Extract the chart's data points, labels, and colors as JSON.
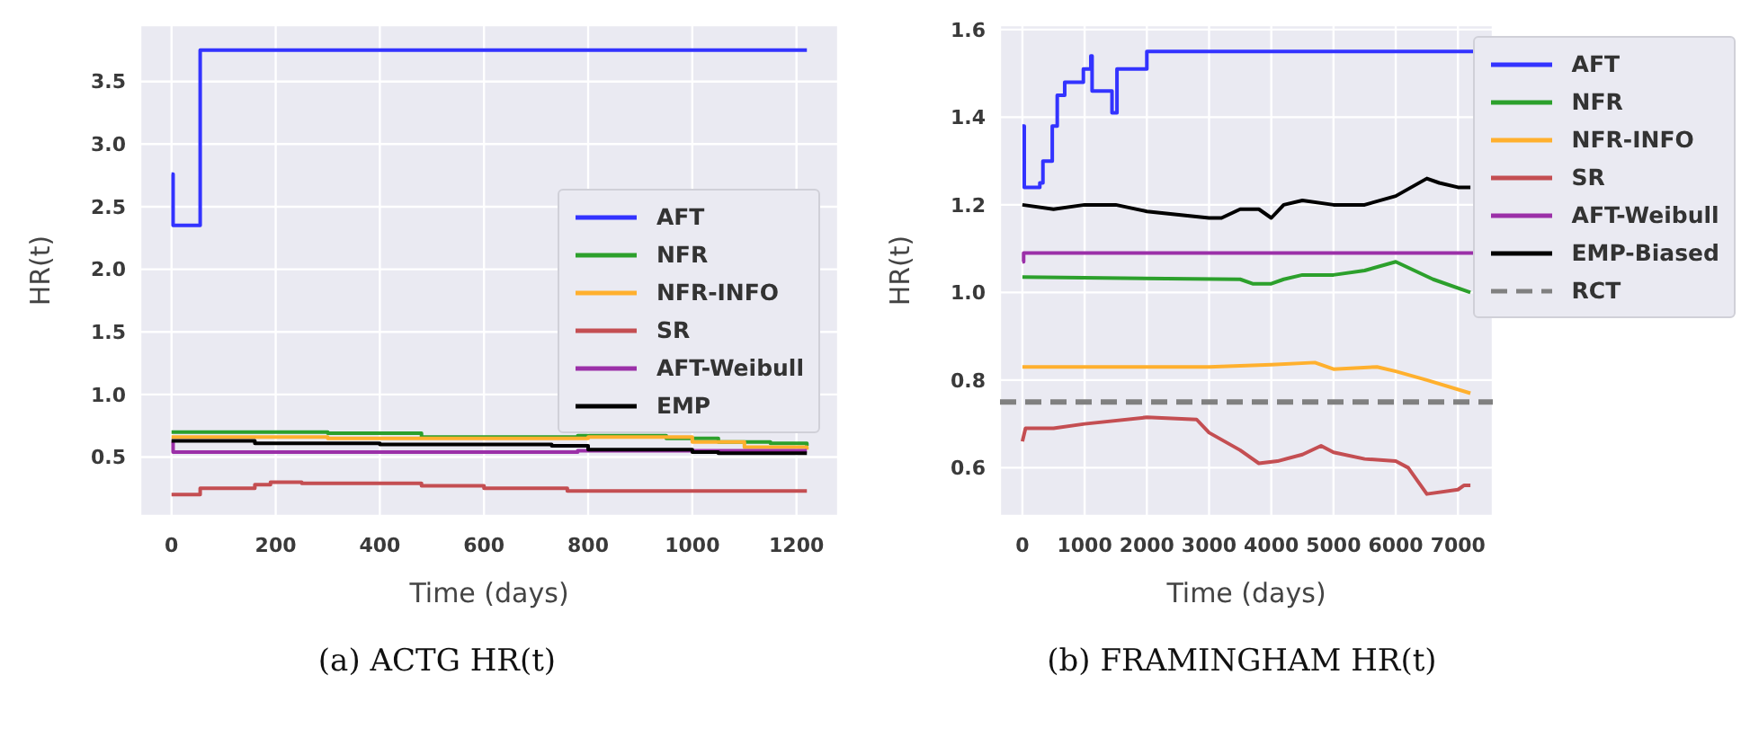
{
  "chart_data": [
    {
      "type": "step",
      "title": "(a) ACTG HR(t)",
      "xlabel": "Time (days)",
      "ylabel": "HR(t)",
      "xlim": [
        -60,
        1280
      ],
      "ylim": [
        0.03,
        3.95
      ],
      "xticks": [
        0,
        200,
        400,
        600,
        800,
        1000,
        1200
      ],
      "yticks": [
        {
          "value": 0.5,
          "label": "0.5"
        },
        {
          "value": 1,
          "label": "1.0"
        },
        {
          "value": 1.5,
          "label": "1.5"
        },
        {
          "value": 2,
          "label": "2.0"
        },
        {
          "value": 2.5,
          "label": "2.5"
        },
        {
          "value": 3,
          "label": "3.0"
        },
        {
          "value": 3.5,
          "label": "3.5"
        }
      ],
      "grid": true,
      "legend": "right",
      "series": [
        {
          "name": "AFT",
          "color": "#3333ff",
          "x": [
            0,
            3,
            55,
            1220
          ],
          "values": [
            2.76,
            2.35,
            3.75,
            3.75
          ]
        },
        {
          "name": "NFR",
          "color": "#2ca02c",
          "x": [
            0,
            300,
            480,
            780,
            950,
            1050,
            1150,
            1220
          ],
          "values": [
            0.7,
            0.69,
            0.66,
            0.67,
            0.65,
            0.62,
            0.61,
            0.59
          ]
        },
        {
          "name": "NFR-INFO",
          "color": "#ffb02e",
          "x": [
            0,
            300,
            750,
            800,
            1000,
            1100,
            1220
          ],
          "values": [
            0.66,
            0.65,
            0.65,
            0.66,
            0.62,
            0.58,
            0.56
          ]
        },
        {
          "name": "SR",
          "color": "#c44e52",
          "x": [
            0,
            55,
            160,
            190,
            250,
            480,
            600,
            760,
            1220
          ],
          "values": [
            0.2,
            0.25,
            0.28,
            0.3,
            0.29,
            0.27,
            0.25,
            0.23,
            0.23
          ]
        },
        {
          "name": "AFT-Weibull",
          "color": "#9b30a8",
          "x": [
            0,
            3,
            780,
            1220
          ],
          "values": [
            0.62,
            0.54,
            0.55,
            0.55
          ]
        },
        {
          "name": "EMP",
          "color": "#000000",
          "x": [
            0,
            160,
            400,
            730,
            800,
            1000,
            1050,
            1220
          ],
          "values": [
            0.63,
            0.61,
            0.6,
            0.59,
            0.56,
            0.54,
            0.53,
            0.53
          ]
        }
      ]
    },
    {
      "type": "line",
      "title": "(b) FRAMINGHAM HR(t)",
      "xlabel": "Time (days)",
      "ylabel": "HR(t)",
      "xlim": [
        -360,
        7560
      ],
      "ylim": [
        0.49,
        1.61
      ],
      "xticks": [
        0,
        1000,
        2000,
        3000,
        4000,
        5000,
        6000,
        7000
      ],
      "yticks": [
        {
          "value": 0.6,
          "label": "0.6"
        },
        {
          "value": 0.8,
          "label": "0.8"
        },
        {
          "value": 1,
          "label": "1.0"
        },
        {
          "value": 1.2,
          "label": "1.2"
        },
        {
          "value": 1.4,
          "label": "1.4"
        },
        {
          "value": 1.6,
          "label": "1.6"
        }
      ],
      "grid": true,
      "legend": "right",
      "ref_lines": [
        {
          "axis": "y",
          "value": 0.75,
          "label": "RCT",
          "color": "#808080",
          "line_style": "dashed"
        }
      ],
      "series": [
        {
          "name": "AFT",
          "color": "#3333ff",
          "type": "step",
          "x": [
            0,
            30,
            280,
            330,
            480,
            560,
            680,
            980,
            1100,
            1120,
            1440,
            1520,
            2000,
            7280
          ],
          "values": [
            1.38,
            1.24,
            1.25,
            1.3,
            1.38,
            1.45,
            1.48,
            1.51,
            1.54,
            1.46,
            1.41,
            1.51,
            1.55,
            1.55
          ]
        },
        {
          "name": "NFR",
          "color": "#2ca02c",
          "x": [
            0,
            3500,
            3700,
            4000,
            4200,
            4500,
            5000,
            5500,
            6000,
            6600,
            7200
          ],
          "values": [
            1.035,
            1.03,
            1.02,
            1.02,
            1.03,
            1.04,
            1.04,
            1.05,
            1.07,
            1.03,
            1.0
          ]
        },
        {
          "name": "NFR-INFO",
          "color": "#ffb02e",
          "x": [
            0,
            3000,
            4000,
            4700,
            5000,
            5700,
            6000,
            6500,
            7200
          ],
          "values": [
            0.83,
            0.83,
            0.835,
            0.84,
            0.825,
            0.83,
            0.82,
            0.8,
            0.77
          ]
        },
        {
          "name": "SR",
          "color": "#c44e52",
          "x": [
            0,
            50,
            500,
            1000,
            2000,
            2800,
            3000,
            3500,
            3800,
            4100,
            4500,
            4800,
            5000,
            5500,
            6000,
            6200,
            6400,
            6500,
            7000,
            7100,
            7200
          ],
          "values": [
            0.66,
            0.69,
            0.69,
            0.7,
            0.715,
            0.71,
            0.68,
            0.64,
            0.61,
            0.615,
            0.63,
            0.65,
            0.635,
            0.62,
            0.615,
            0.6,
            0.56,
            0.54,
            0.55,
            0.56,
            0.56
          ]
        },
        {
          "name": "AFT-Weibull",
          "color": "#9b30a8",
          "type": "step",
          "x": [
            0,
            20,
            7280
          ],
          "values": [
            1.07,
            1.09,
            1.09
          ]
        },
        {
          "name": "EMP-Biased",
          "color": "#000000",
          "x": [
            0,
            500,
            1000,
            1500,
            2000,
            3000,
            3200,
            3500,
            3800,
            4000,
            4200,
            4500,
            5000,
            5500,
            6000,
            6500,
            6700,
            7000,
            7200
          ],
          "values": [
            1.2,
            1.19,
            1.2,
            1.2,
            1.185,
            1.17,
            1.17,
            1.19,
            1.19,
            1.17,
            1.2,
            1.21,
            1.2,
            1.2,
            1.22,
            1.26,
            1.25,
            1.24,
            1.24
          ]
        }
      ]
    }
  ]
}
